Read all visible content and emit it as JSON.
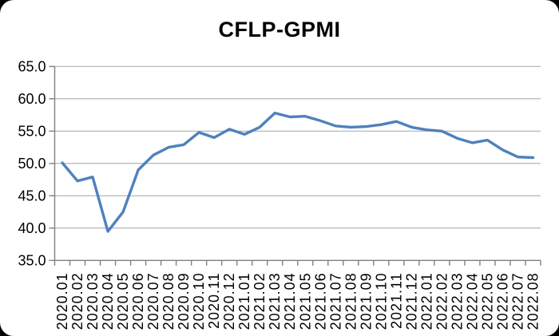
{
  "window": {
    "kind": "chart-panel"
  },
  "colors": {
    "background": "#000000",
    "panel": "#FFFFFF",
    "gridline": "#A6A6A6",
    "axis": "#7F7F7F",
    "text": "#000000",
    "line": "#4F81BD"
  },
  "chart_data": {
    "type": "line",
    "title": "CFLP-GPMI",
    "series_name": "CFLP-GPMI",
    "categories": [
      "2020.01",
      "2020.02",
      "2020.03",
      "2020.04",
      "2020.05",
      "2020.06",
      "2020.07",
      "2020.08",
      "2020.09",
      "2020.10",
      "2020.11",
      "2020.12",
      "2021.01",
      "2021.02",
      "2021.03",
      "2021.04",
      "2021.05",
      "2021.06",
      "2021.07",
      "2021.08",
      "2021.09",
      "2021.10",
      "2021.11",
      "2021.12",
      "2022.01",
      "2022.02",
      "2022.03",
      "2022.04",
      "2022.05",
      "2022.06",
      "2022.07",
      "2022.08"
    ],
    "values": [
      50.1,
      47.3,
      47.9,
      39.5,
      42.5,
      49.0,
      51.3,
      52.5,
      52.9,
      54.8,
      54.0,
      55.3,
      54.5,
      55.6,
      57.8,
      57.2,
      57.3,
      56.6,
      55.8,
      55.6,
      55.7,
      56.0,
      56.5,
      55.6,
      55.2,
      55.0,
      53.9,
      53.2,
      53.6,
      52.1,
      51.0,
      50.9
    ],
    "xlabel": "",
    "ylabel": "",
    "ylim": [
      35.0,
      65.0
    ],
    "ytick_interval": 5,
    "ytick_labels": [
      "65.0",
      "60.0",
      "55.0",
      "50.0",
      "45.0",
      "40.0",
      "35.0"
    ],
    "grid": "horizontal",
    "legend": "none",
    "x_label_rotation_deg": 90,
    "line_color": "#4F81BD"
  }
}
